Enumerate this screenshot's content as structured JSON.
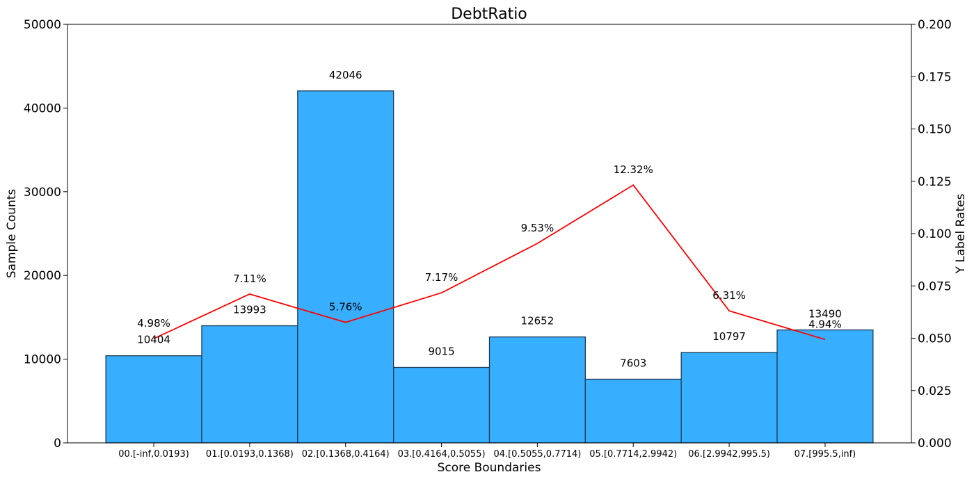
{
  "chart_data": {
    "type": "bar",
    "title": "DebtRatio",
    "xlabel": "Score Boundaries",
    "ylabel": "Sample Counts",
    "y2label": "Y Label Rates",
    "categories": [
      "00.[-inf,0.0193)",
      "01.[0.0193,0.1368)",
      "02.[0.1368,0.4164)",
      "03.[0.4164,0.5055)",
      "04.[0.5055,0.7714)",
      "05.[0.7714,2.9942)",
      "06.[2.9942,995.5)",
      "07.[995.5,inf)"
    ],
    "series": [
      {
        "type": "bar",
        "axis": "left",
        "values": [
          10404,
          13993,
          42046,
          9015,
          12652,
          7603,
          10797,
          13490
        ],
        "labels": [
          "10404",
          "13993",
          "42046",
          "9015",
          "12652",
          "7603",
          "10797",
          "13490"
        ],
        "color": "#38AEFE",
        "edge_color": "#1f3a55"
      },
      {
        "type": "line",
        "axis": "right",
        "values": [
          0.0498,
          0.0711,
          0.0576,
          0.0717,
          0.0953,
          0.1232,
          0.0631,
          0.0494
        ],
        "labels": [
          "4.98%",
          "7.11%",
          "5.76%",
          "7.17%",
          "9.53%",
          "12.32%",
          "6.31%",
          "4.94%"
        ],
        "color": "#ff0000"
      }
    ],
    "ylim": [
      0,
      50000
    ],
    "y2lim": [
      0,
      0.2
    ],
    "yticks": [
      "0",
      "10000",
      "20000",
      "30000",
      "40000",
      "50000"
    ],
    "y2ticks": [
      "0.000",
      "0.025",
      "0.050",
      "0.075",
      "0.100",
      "0.125",
      "0.150",
      "0.175",
      "0.200"
    ],
    "grid": false
  }
}
